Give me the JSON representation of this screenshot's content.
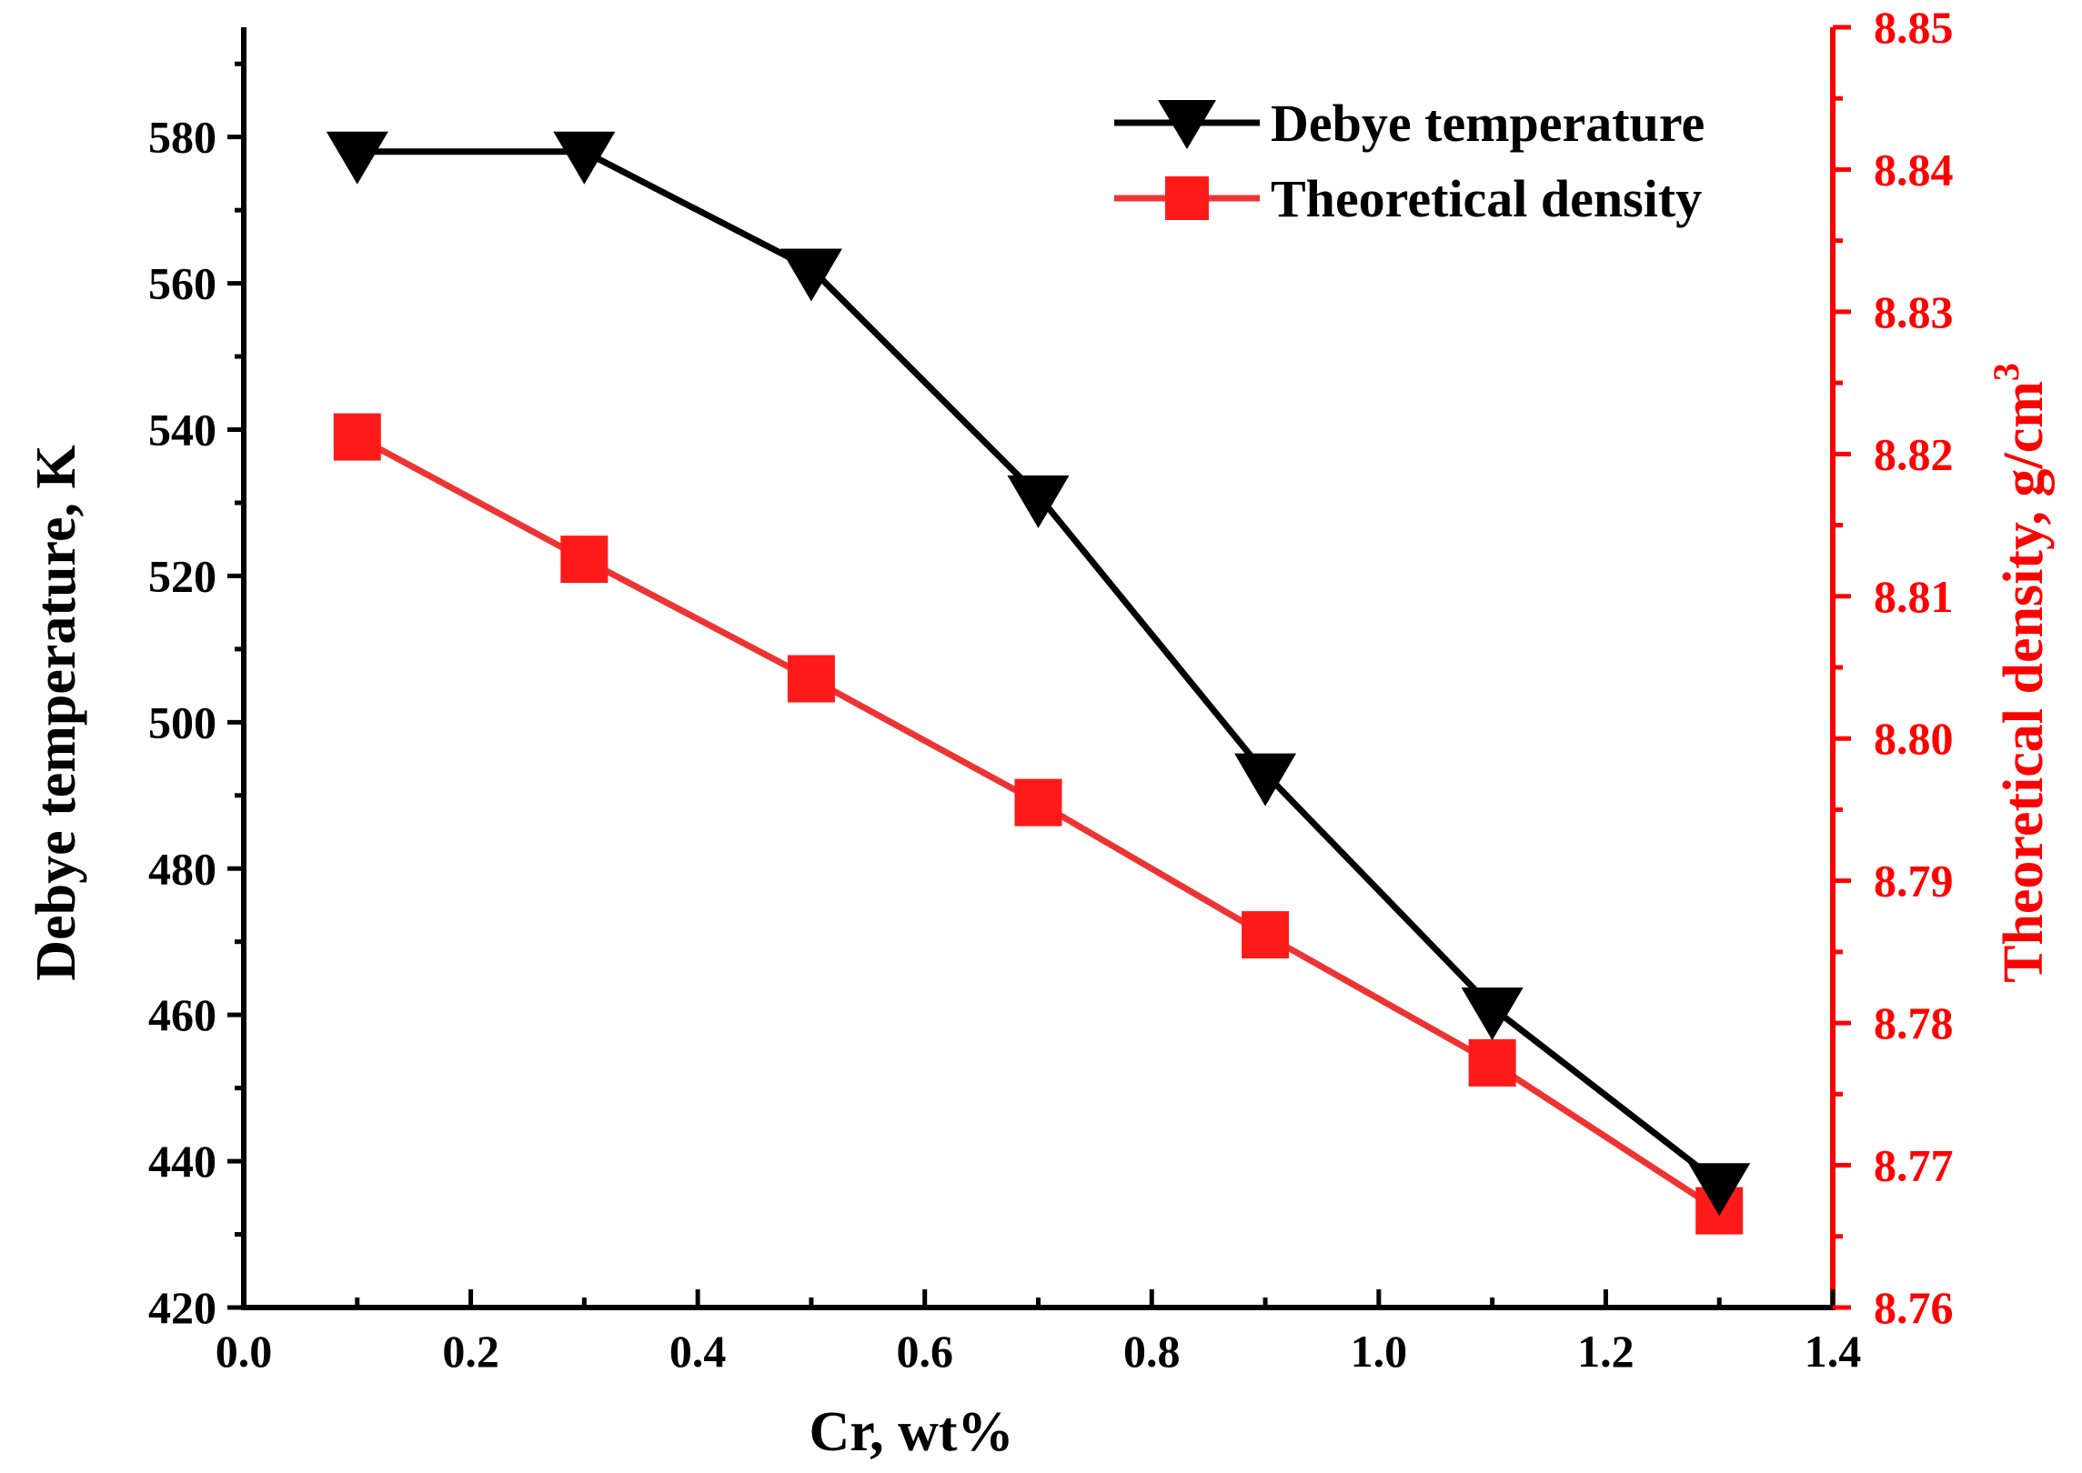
{
  "chart_data": {
    "type": "line",
    "title": "",
    "xlabel": "Cr, wt%",
    "ylabel_left": "Debye temperature, K",
    "ylabel_right_base": "Theoretical density, g/cm",
    "ylabel_right_sup": "3",
    "xlim": [
      0.0,
      1.4
    ],
    "ylim_left": [
      420,
      595
    ],
    "ylim_right": [
      8.76,
      8.85
    ],
    "xticks": [
      "0.0",
      "0.2",
      "0.4",
      "0.6",
      "0.8",
      "1.0",
      "1.2",
      "1.4"
    ],
    "yticks_left": [
      "420",
      "440",
      "460",
      "480",
      "500",
      "520",
      "540",
      "560",
      "580"
    ],
    "yticks_right": [
      "8.76",
      "8.77",
      "8.78",
      "8.79",
      "8.80",
      "8.81",
      "8.82",
      "8.83",
      "8.84",
      "8.85"
    ],
    "legend_position": "top-right",
    "series": [
      {
        "name": "Debye temperature",
        "axis": "left",
        "marker": "down-triangle",
        "color": "#000000",
        "x": [
          0.1,
          0.3,
          0.5,
          0.7,
          0.9,
          1.1,
          1.3
        ],
        "values": [
          578,
          578,
          562,
          531,
          493,
          461,
          437
        ]
      },
      {
        "name": "Theoretical density",
        "axis": "right",
        "marker": "square",
        "color": "#ff1a1a",
        "x": [
          0.1,
          0.3,
          0.5,
          0.7,
          0.9,
          1.1,
          1.3
        ],
        "values": [
          8.8212,
          8.8126,
          8.8042,
          8.7955,
          8.7862,
          8.7772,
          8.7668
        ]
      }
    ],
    "colors": {
      "axis_right": "#ff0000",
      "line_density": "#ee3333",
      "axis_left": "#000000"
    }
  }
}
